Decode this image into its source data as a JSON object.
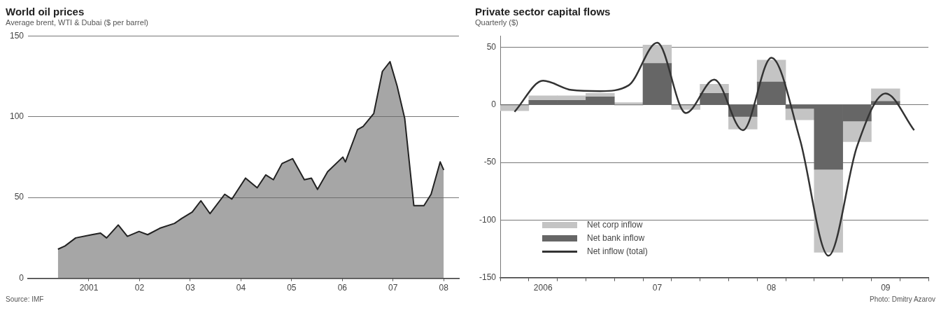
{
  "chart_data": [
    {
      "type": "area",
      "title": "World oil prices",
      "subtitle": "Average brent, WTI & Dubai ($ per barrel)",
      "annotations": [
        "Source: IMF"
      ],
      "color": "#6a6a6a",
      "grid": "y",
      "xlim": [
        1999.8,
        2008.3
      ],
      "xticks": [
        {
          "value": 2001,
          "label": "2001"
        },
        {
          "value": 2002,
          "label": "02"
        },
        {
          "value": 2003,
          "label": "03"
        },
        {
          "value": 2004,
          "label": "04"
        },
        {
          "value": 2005,
          "label": "05"
        },
        {
          "value": 2006,
          "label": "06"
        },
        {
          "value": 2007,
          "label": "07"
        },
        {
          "value": 2008,
          "label": "08"
        }
      ],
      "ylim": [
        0,
        150
      ],
      "yticks": [
        0,
        50,
        100,
        150
      ],
      "x": [
        2000.39,
        2000.53,
        2000.74,
        2001.06,
        2001.23,
        2001.35,
        2001.58,
        2001.76,
        2001.99,
        2002.16,
        2002.4,
        2002.69,
        2002.83,
        2003.04,
        2003.21,
        2003.39,
        2003.68,
        2003.82,
        2004.09,
        2004.32,
        2004.49,
        2004.64,
        2004.81,
        2005.02,
        2005.25,
        2005.39,
        2005.51,
        2005.71,
        2006.01,
        2006.06,
        2006.3,
        2006.41,
        2006.62,
        2006.79,
        2006.94,
        2007.08,
        2007.23,
        2007.41,
        2007.61,
        2007.75,
        2007.93,
        2008.0
      ],
      "values": [
        18,
        20,
        25,
        27,
        28,
        25,
        33,
        26,
        29,
        27,
        31,
        34,
        37,
        41,
        48,
        40,
        52,
        49,
        62,
        56,
        64,
        61,
        71,
        74,
        61,
        62,
        55,
        66,
        75,
        72,
        92,
        94,
        102,
        128,
        134,
        119,
        99,
        45,
        45,
        52,
        72,
        67
      ]
    },
    {
      "type": "bar",
      "title": "Private sector capital flows",
      "subtitle": "Quarterly ($)",
      "annotations": [
        "Photo: Dmitry Azarov"
      ],
      "stacked": true,
      "grid": "y",
      "legend": "bottom left",
      "categories": [
        null,
        "2006",
        null,
        null,
        null,
        "07",
        null,
        null,
        null,
        "08",
        null,
        null,
        null,
        "09",
        null
      ],
      "ylim": [
        -150,
        60
      ],
      "yticks": [
        -150,
        -100,
        -50,
        0,
        50
      ],
      "series": [
        {
          "name": "Net bank inflow",
          "color": "#666666",
          "values": [
            0,
            4,
            4,
            7,
            0,
            36,
            0,
            10,
            -10,
            20,
            -3,
            -56,
            -14,
            3,
            null
          ]
        },
        {
          "name": "Net corp inflow",
          "color": "#c4c4c4",
          "values": [
            -5,
            4,
            4,
            3,
            2,
            16,
            -4,
            8,
            -11,
            19,
            -10,
            -72,
            -18,
            11,
            null
          ]
        },
        {
          "name": "Net inflow (total)",
          "type": "line",
          "color": "#333333",
          "values": [
            -6,
            21,
            13,
            12,
            17,
            54,
            -7,
            22,
            -22,
            41,
            -30,
            -131,
            -36,
            10,
            -22
          ]
        }
      ]
    }
  ]
}
